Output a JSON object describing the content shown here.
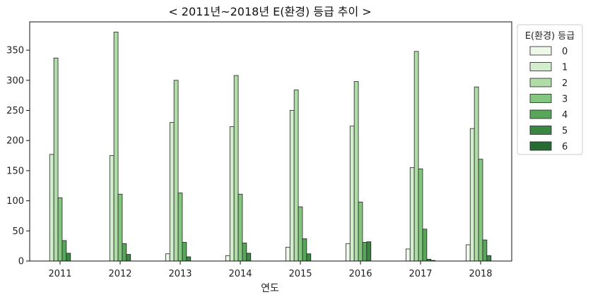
{
  "chart_data": {
    "type": "bar",
    "title": "< 2011년~2018년 E(환경) 등급 추이 >",
    "xlabel": "연도",
    "ylabel": "",
    "categories": [
      "2011",
      "2012",
      "2013",
      "2014",
      "2015",
      "2016",
      "2017",
      "2018"
    ],
    "ylim": [
      0,
      397
    ],
    "yticks": [
      0,
      50,
      100,
      150,
      200,
      250,
      300,
      350
    ],
    "grid": false,
    "legend": {
      "title": "E(환경) 등급",
      "position": "right, outside top"
    },
    "series": [
      {
        "name": "0",
        "color": "#edf8e9",
        "values": [
          0,
          0,
          12,
          9,
          23,
          29,
          20,
          27
        ]
      },
      {
        "name": "1",
        "color": "#d3eecc",
        "values": [
          177,
          175,
          230,
          223,
          250,
          224,
          155,
          220
        ]
      },
      {
        "name": "2",
        "color": "#b0dca8",
        "values": [
          337,
          380,
          300,
          308,
          284,
          298,
          348,
          289
        ]
      },
      {
        "name": "3",
        "color": "#84c67f",
        "values": [
          105,
          111,
          113,
          111,
          90,
          98,
          153,
          169
        ]
      },
      {
        "name": "4",
        "color": "#58a65a",
        "values": [
          34,
          29,
          31,
          30,
          37,
          31,
          53,
          35
        ]
      },
      {
        "name": "5",
        "color": "#3a8643",
        "values": [
          13,
          11,
          7,
          13,
          12,
          32,
          3,
          9
        ]
      },
      {
        "name": "6",
        "color": "#256b33",
        "values": [
          0,
          0,
          0,
          0,
          0,
          0,
          1,
          0
        ]
      }
    ]
  }
}
